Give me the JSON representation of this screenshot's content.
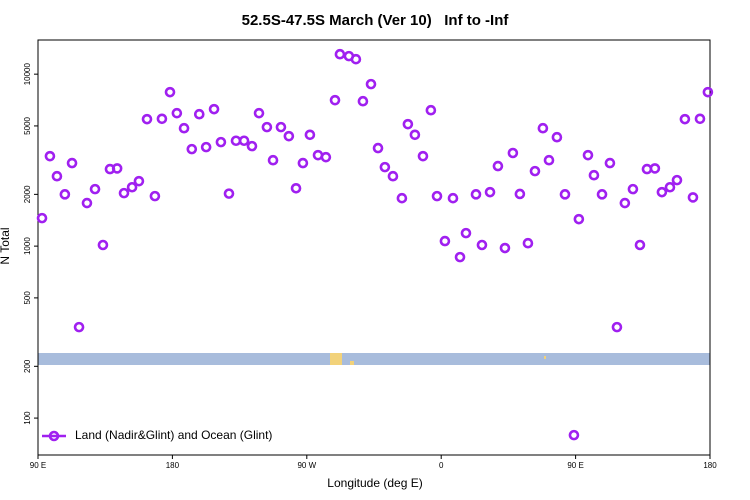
{
  "chart_data": {
    "type": "scatter",
    "title": "52.5S-47.5S March (Ver 10)   Inf to -Inf",
    "x_label": "Longitude (deg E)",
    "y_label": "N Total",
    "y_log": true,
    "legend_position": "bottomleft",
    "xlim": [
      90,
      540
    ],
    "xticks": [
      {
        "value": 90,
        "label": "90 E"
      },
      {
        "value": 180,
        "label": "180"
      },
      {
        "value": 270,
        "label": "90 W"
      },
      {
        "value": 360,
        "label": "0"
      },
      {
        "value": 450,
        "label": "90 E"
      },
      {
        "value": 540,
        "label": "180"
      }
    ],
    "ylim": [
      61,
      15800
    ],
    "yticks": [
      100,
      200,
      500,
      1000,
      2000,
      5000,
      10000
    ],
    "series": [
      {
        "name": "Land (Nadir&Glint) and Ocean (Glint)",
        "color": "#a020f0",
        "x": [
          92.7,
          98,
          102.7,
          108,
          112.8,
          117.5,
          122.8,
          128.2,
          133.5,
          138.2,
          143,
          147.6,
          153,
          157.6,
          163,
          168.3,
          173,
          178.4,
          183,
          187.8,
          193,
          198,
          202.6,
          207.9,
          212.5,
          217.9,
          222.6,
          228,
          233.3,
          238,
          243.3,
          247.4,
          252.7,
          258,
          262.8,
          267.4,
          272.1,
          277.5,
          282.8,
          288.9,
          292.2,
          298.2,
          302.9,
          307.6,
          313,
          317.7,
          322.3,
          327.7,
          333.7,
          337.7,
          342.4,
          347.8,
          353.1,
          357.2,
          362.5,
          367.9,
          372.6,
          376.6,
          383.3,
          387.3,
          392.7,
          398,
          402.7,
          408,
          412.7,
          418.1,
          422.8,
          428.1,
          432.2,
          437.5,
          442.9,
          448.9,
          452.2,
          458.3,
          462.3,
          467.7,
          473,
          477.7,
          483,
          488.4,
          493.1,
          497.8,
          503.1,
          507.8,
          513.2,
          517.9,
          523.2,
          528.6,
          533.3,
          538.6
        ],
        "values": [
          1455,
          3335,
          2550,
          2000,
          3040,
          338,
          1780,
          2145,
          1015,
          2805,
          2830,
          2033,
          2200,
          2386,
          5475,
          1953,
          5500,
          7860,
          5930,
          4850,
          3665,
          5850,
          3765,
          6260,
          4025,
          2020,
          4100,
          4100,
          3815,
          5930,
          4920,
          3160,
          4920,
          4360,
          2170,
          3040,
          4440,
          3380,
          3290,
          7060,
          13060,
          12730,
          12220,
          6960,
          8750,
          3715,
          2880,
          2550,
          1900,
          5120,
          4440,
          3335,
          6170,
          1953,
          1070,
          1900,
          863,
          1190,
          2000,
          1015,
          2060,
          2920,
          975,
          3480,
          2010,
          1040,
          2730,
          4850,
          3160,
          4300,
          2000,
          79.6,
          1435,
          3380,
          2585,
          2000,
          3040,
          338,
          1780,
          2145,
          1015,
          2805,
          2830,
          2060,
          2200,
          2420,
          5475,
          1920,
          5500,
          7860
        ]
      }
    ]
  }
}
